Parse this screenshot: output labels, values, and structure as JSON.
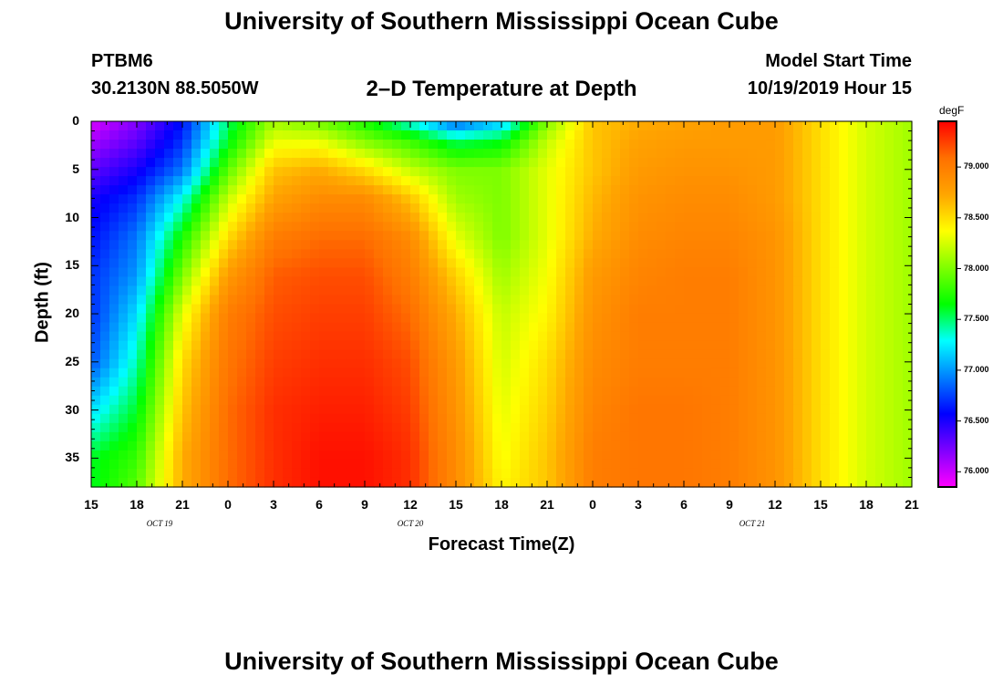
{
  "title": "University of Southern Mississippi Ocean Cube",
  "footer_title": "University of Southern Mississippi Ocean Cube",
  "station": "PTBM6",
  "coords": "30.2130N 88.5050W",
  "plot_title": "2–D Temperature at Depth",
  "model_start_label": "Model Start Time",
  "model_start_value": "10/19/2019 Hour 15",
  "chart_data": {
    "type": "heatmap",
    "title": "2–D Temperature at Depth",
    "xlabel": "Forecast Time(Z)",
    "ylabel": "Depth (ft)",
    "x_hours_range": [
      0,
      54
    ],
    "x_tick_labels": [
      "15",
      "18",
      "21",
      "0",
      "3",
      "6",
      "9",
      "12",
      "15",
      "18",
      "21",
      "0",
      "3",
      "6",
      "9",
      "12",
      "15",
      "18",
      "21"
    ],
    "date_labels": [
      {
        "text": "OCT  19",
        "hour": 4.5
      },
      {
        "text": "OCT  20",
        "hour": 21
      },
      {
        "text": "OCT  21",
        "hour": 43.5
      }
    ],
    "y_range": [
      0,
      38
    ],
    "y_ticks": [
      0,
      5,
      10,
      15,
      20,
      25,
      30,
      35
    ],
    "units": "degF",
    "colorbar_range": [
      75.85,
      79.45
    ],
    "colorbar_ticks": [
      "76.000",
      "76.500",
      "77.000",
      "77.500",
      "78.000",
      "78.500",
      "79.000"
    ],
    "colorbar_tick_values": [
      76.0,
      76.5,
      77.0,
      77.5,
      78.0,
      78.5,
      79.0
    ],
    "colorbar_colors": [
      "#ff00ff",
      "#7f00ff",
      "#0000ff",
      "#0080ff",
      "#00ffff",
      "#00ff00",
      "#80ff00",
      "#ffff00",
      "#ffa500",
      "#ff7000",
      "#ff0000"
    ],
    "depth_levels": [
      0,
      2,
      5,
      8,
      12,
      16,
      20,
      25,
      30,
      35,
      38
    ],
    "hours": [
      0,
      3,
      6,
      9,
      12,
      15,
      18,
      21,
      24,
      27,
      30,
      33,
      36,
      39,
      42,
      45,
      48,
      51,
      54
    ],
    "values": [
      [
        75.95,
        76.2,
        76.6,
        77.5,
        78.1,
        77.95,
        77.7,
        77.3,
        76.8,
        77.1,
        78.0,
        78.6,
        78.7,
        78.75,
        78.8,
        78.8,
        78.5,
        78.25,
        78.1
      ],
      [
        76.1,
        76.3,
        76.7,
        77.6,
        78.3,
        78.3,
        78.0,
        77.8,
        77.5,
        77.6,
        78.2,
        78.6,
        78.75,
        78.8,
        78.8,
        78.8,
        78.5,
        78.25,
        78.1
      ],
      [
        76.3,
        76.5,
        76.9,
        77.9,
        78.6,
        78.7,
        78.5,
        78.2,
        78.0,
        78.0,
        78.3,
        78.6,
        78.8,
        78.85,
        78.85,
        78.8,
        78.5,
        78.25,
        78.1
      ],
      [
        76.5,
        76.7,
        77.3,
        78.2,
        78.75,
        78.9,
        78.9,
        78.6,
        78.1,
        78.0,
        78.3,
        78.65,
        78.85,
        78.9,
        78.9,
        78.8,
        78.5,
        78.25,
        78.1
      ],
      [
        76.6,
        76.9,
        77.7,
        78.5,
        79.0,
        79.1,
        79.1,
        78.9,
        78.3,
        78.0,
        78.3,
        78.7,
        78.9,
        78.95,
        78.95,
        78.85,
        78.5,
        78.25,
        78.1
      ],
      [
        76.7,
        77.0,
        78.0,
        78.8,
        79.15,
        79.2,
        79.2,
        79.0,
        78.55,
        78.1,
        78.35,
        78.8,
        78.95,
        79.0,
        79.0,
        78.85,
        78.5,
        78.25,
        78.1
      ],
      [
        76.7,
        77.2,
        78.3,
        79.0,
        79.2,
        79.25,
        79.25,
        79.1,
        78.7,
        78.2,
        78.4,
        78.85,
        79.0,
        79.0,
        79.0,
        78.85,
        78.5,
        78.25,
        78.1
      ],
      [
        76.8,
        77.4,
        78.5,
        79.05,
        79.25,
        79.3,
        79.3,
        79.2,
        78.8,
        78.25,
        78.5,
        78.9,
        79.0,
        79.0,
        79.0,
        78.85,
        78.5,
        78.25,
        78.1
      ],
      [
        77.2,
        77.6,
        78.6,
        79.1,
        79.3,
        79.35,
        79.35,
        79.25,
        78.85,
        78.3,
        78.55,
        78.95,
        79.05,
        79.05,
        79.0,
        78.85,
        78.5,
        78.25,
        78.1
      ],
      [
        77.6,
        77.8,
        78.7,
        79.1,
        79.3,
        79.4,
        79.4,
        79.3,
        78.9,
        78.35,
        78.6,
        79.0,
        79.05,
        79.05,
        79.0,
        78.85,
        78.5,
        78.25,
        78.1
      ],
      [
        77.6,
        77.9,
        78.7,
        79.1,
        79.3,
        79.4,
        79.4,
        79.3,
        78.9,
        78.4,
        78.6,
        79.0,
        79.05,
        79.05,
        79.0,
        78.85,
        78.5,
        78.25,
        78.1
      ]
    ]
  }
}
